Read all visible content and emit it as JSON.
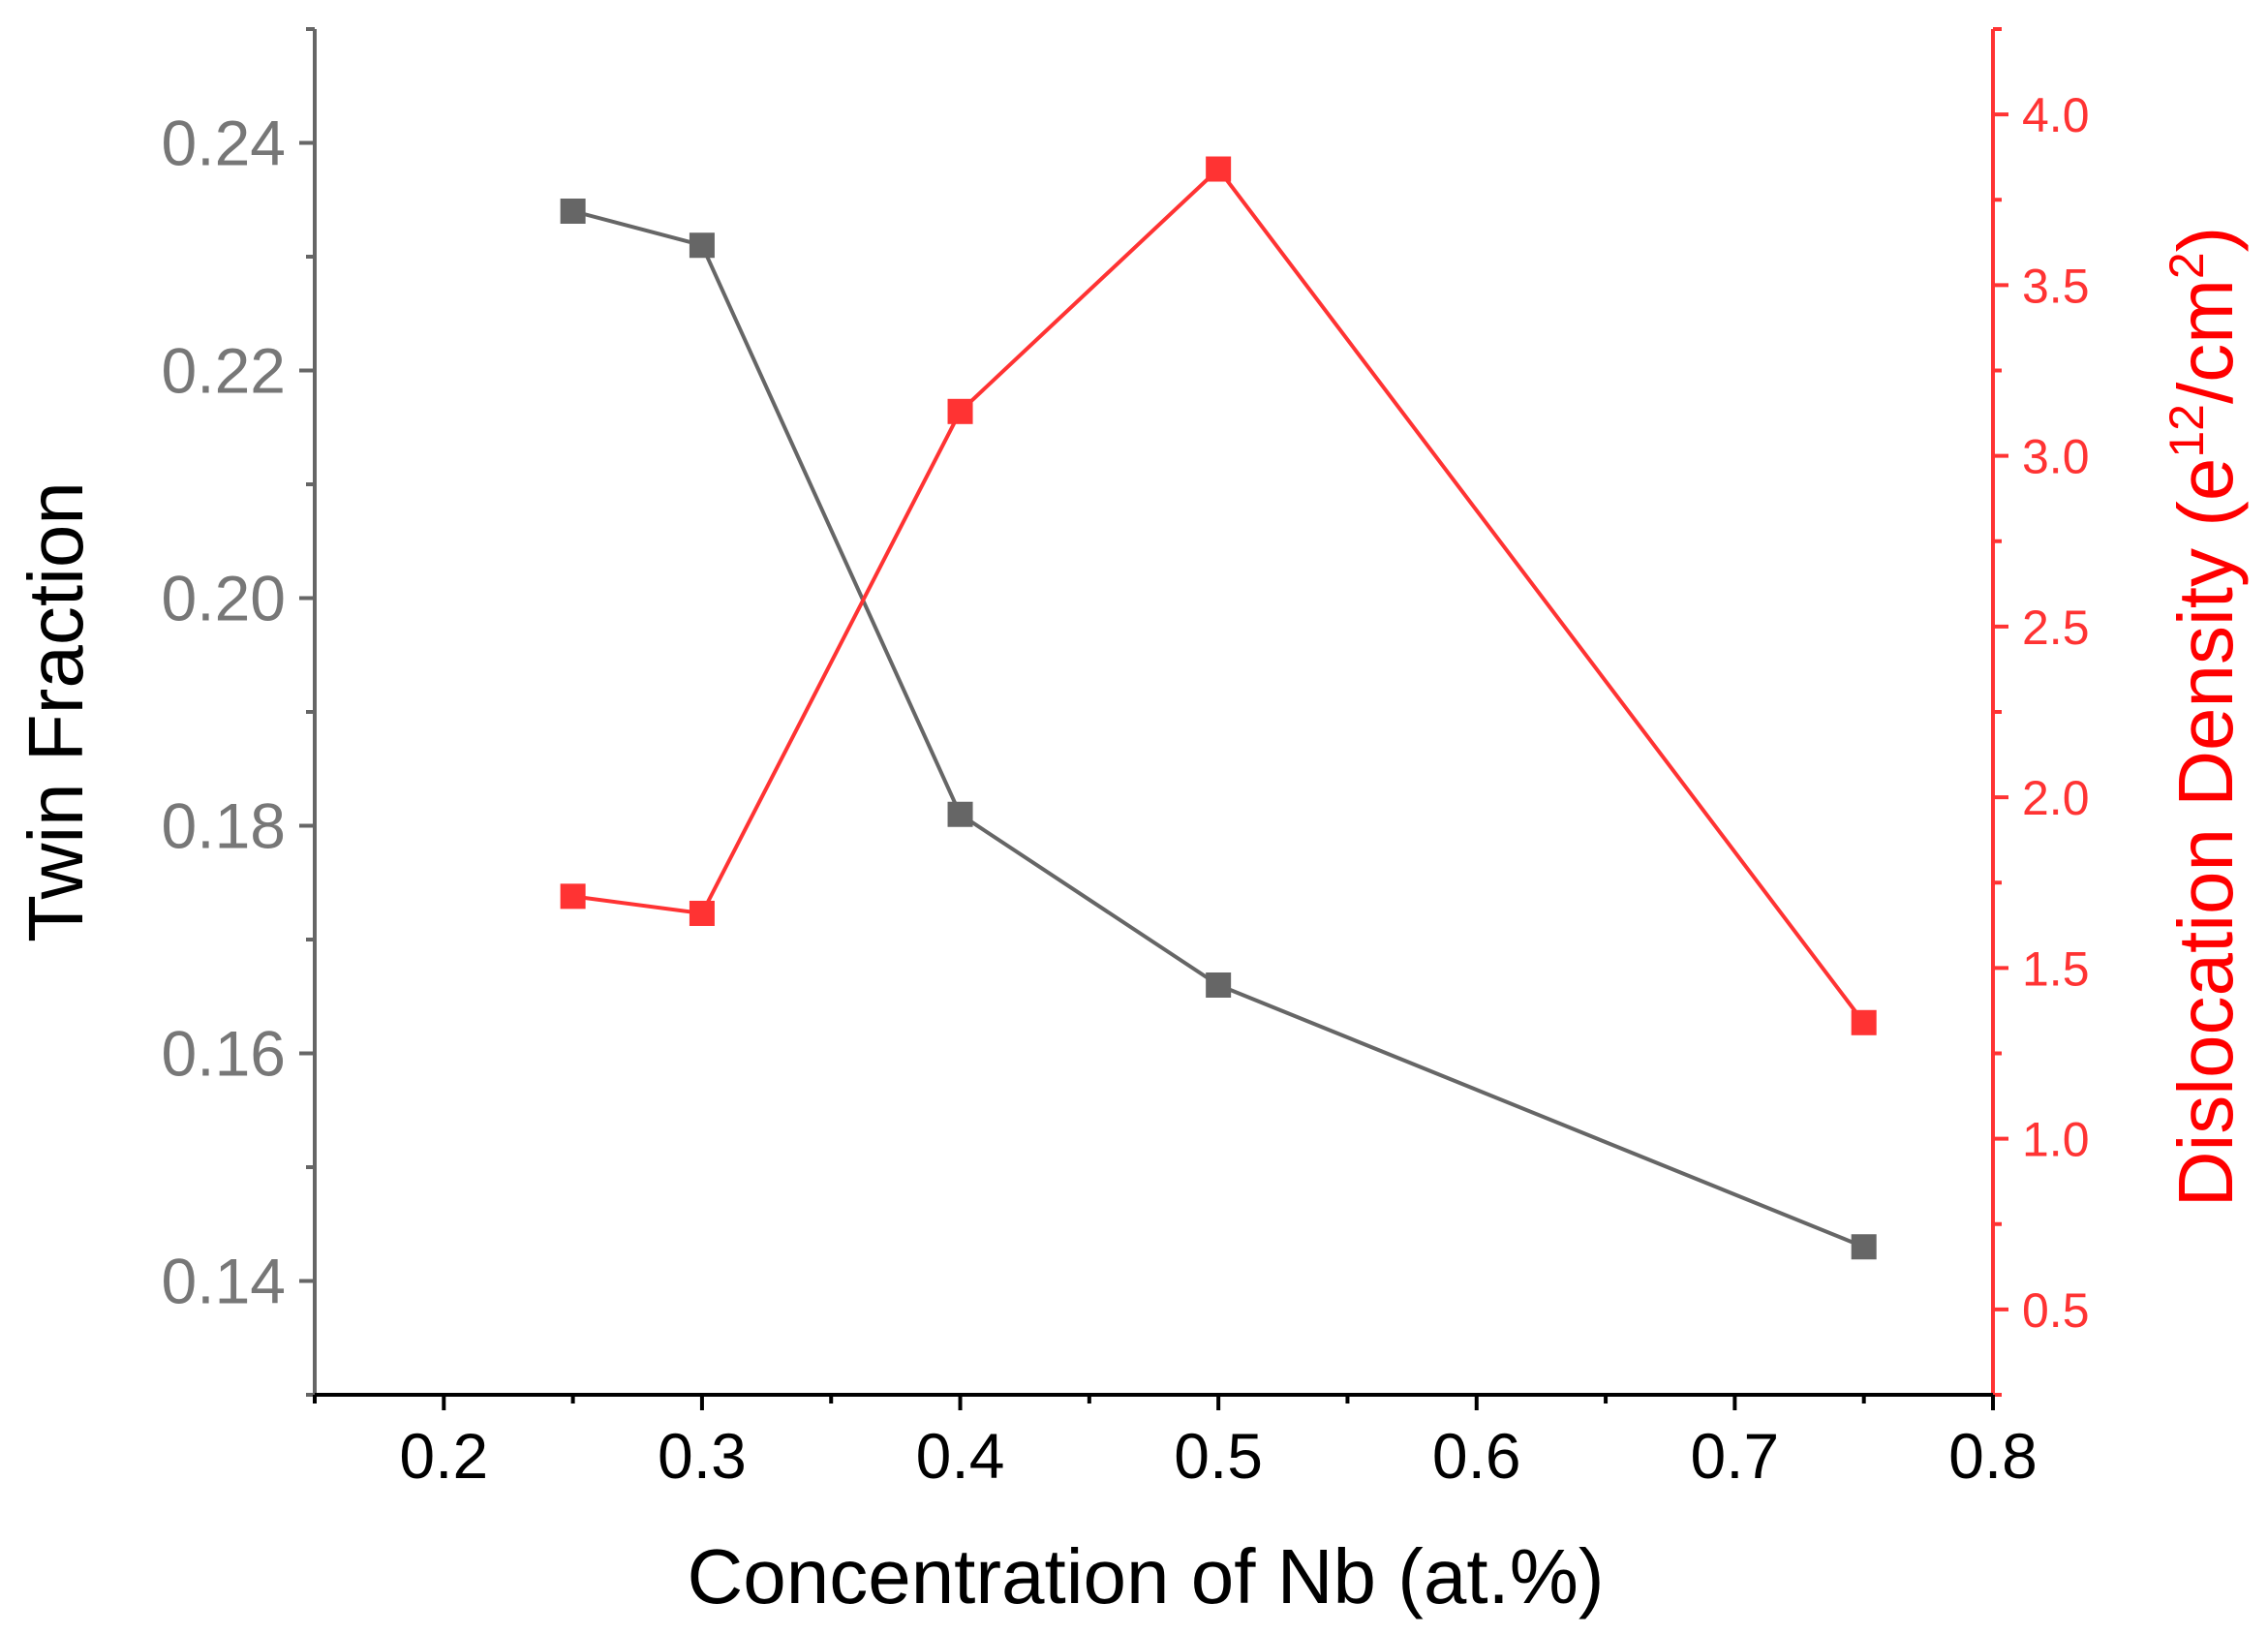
{
  "chart_data": {
    "type": "line",
    "title": "",
    "xlabel": "Concentration of Nb (at.%)",
    "ylabel_left": "Twin Fraction",
    "ylabel_right": {
      "prefix": "Dislocation Density (e",
      "sup1": "12",
      "middle": "/cm",
      "sup2": "2",
      "suffix": ")"
    },
    "xlim": [
      0.15,
      0.8
    ],
    "ylim_left": [
      0.13,
      0.25
    ],
    "ylim_right": [
      0.25,
      4.25
    ],
    "x_ticks": [
      "0.2",
      "0.3",
      "0.4",
      "0.5",
      "0.6",
      "0.7",
      "0.8"
    ],
    "y_left_ticks": [
      "0.14",
      "0.16",
      "0.18",
      "0.20",
      "0.22",
      "0.24"
    ],
    "y_right_ticks": [
      "0.5",
      "1.0",
      "1.5",
      "2.0",
      "2.5",
      "3.0",
      "3.5",
      "4.0"
    ],
    "grid": false,
    "legend": "none",
    "series": [
      {
        "name": "Twin Fraction",
        "axis": "left",
        "color": "#666666",
        "marker": "square",
        "x": [
          0.25,
          0.3,
          0.4,
          0.5,
          0.75
        ],
        "values": [
          0.234,
          0.231,
          0.181,
          0.166,
          0.143
        ]
      },
      {
        "name": "Dislocation Density",
        "axis": "right",
        "color": "#ff3333",
        "marker": "square",
        "x": [
          0.25,
          0.3,
          0.4,
          0.5,
          0.75
        ],
        "values": [
          1.71,
          1.66,
          3.13,
          3.84,
          1.34
        ]
      }
    ],
    "colors": {
      "left_axis": "#666666",
      "right_axis": "#ff3333",
      "left_ticklabels": "#777777",
      "right_title": "#ff0000",
      "text": "#000000"
    }
  }
}
